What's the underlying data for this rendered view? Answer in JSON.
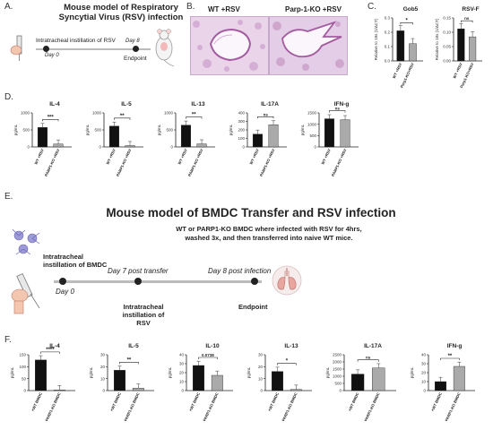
{
  "panel_a": {
    "letter": "A.",
    "title": "Mouse model of Respiratory Syncytial Virus (RSV) infection",
    "step": "Intratracheal instillation of RSV",
    "day0": "Day 0",
    "day8": "Day 8",
    "endpoint": "Endpoint"
  },
  "panel_b": {
    "letter": "B.",
    "left_label": "WT +RSV",
    "right_label": "Parp-1-KO +RSV"
  },
  "panel_c": {
    "letter": "C."
  },
  "panel_d": {
    "letter": "D."
  },
  "panel_e": {
    "letter": "E.",
    "title": "Mouse model of BMDC Transfer and RSV infection",
    "desc_1": "WT or PARP1-KO BMDC where infected with RSV for 4hrs,",
    "desc_2": "washed 3x, and then transferred into naive WT mice.",
    "step1_1": "Intratracheal",
    "step1_2": "instillation of BMDC",
    "day0": "Day 0",
    "day7": "Day 7 post transfer",
    "day8": "Day 8 post infection",
    "step2_1": "Intratracheal",
    "step2_2": "instillation of RSV",
    "endpoint": "Endpoint"
  },
  "panel_f": {
    "letter": "F."
  },
  "colors": {
    "wt": "#111111",
    "ko": "#aaaaaa",
    "histo": "#c48cc0"
  },
  "chart_data": [
    {
      "id": "c1",
      "type": "bar",
      "title": "Gob5",
      "ylabel": "Relative to 18s (1/ΔCT)",
      "ylim": [
        0,
        0.3
      ],
      "yticks": [
        "0.0",
        "0.1",
        "0.2",
        "0.3"
      ],
      "categories": [
        "WT +RSV",
        "Parp1-KO+RSV"
      ],
      "values": [
        0.21,
        0.12
      ],
      "sig": "*"
    },
    {
      "id": "c2",
      "type": "bar",
      "title": "RSV-F",
      "ylabel": "Relative to 18s (1/ΔCT)",
      "ylim": [
        0,
        0.15
      ],
      "yticks": [
        "0.00",
        "0.05",
        "0.10",
        "0.15"
      ],
      "categories": [
        "WT +RSV",
        "Parp1-KO+RSV"
      ],
      "values": [
        0.112,
        0.084
      ],
      "sig": "ns"
    },
    {
      "id": "d1",
      "type": "bar",
      "title": "IL-4",
      "ylabel": "pg/mL",
      "ylim": [
        0,
        1000
      ],
      "yticks": [
        "0",
        "500",
        "1000"
      ],
      "categories": [
        "WT +RSV",
        "PARP1-KO +RSV"
      ],
      "values": [
        570,
        85
      ],
      "sig": "***"
    },
    {
      "id": "d2",
      "type": "bar",
      "title": "IL-5",
      "ylabel": "pg/mL",
      "ylim": [
        0,
        1000
      ],
      "yticks": [
        "0",
        "500",
        "1000"
      ],
      "categories": [
        "WT +RSV",
        "PARP1-KO +RSV"
      ],
      "values": [
        610,
        40
      ],
      "sig": "**"
    },
    {
      "id": "d3",
      "type": "bar",
      "title": "IL-13",
      "ylabel": "pg/mL",
      "ylim": [
        0,
        1000
      ],
      "yticks": [
        "0",
        "500",
        "1000"
      ],
      "categories": [
        "WT +RSV",
        "PARP1-KO +RSV"
      ],
      "values": [
        640,
        90
      ],
      "sig": "**"
    },
    {
      "id": "d4",
      "type": "bar",
      "title": "IL-17A",
      "ylabel": "pg/mL",
      "ylim": [
        0,
        400
      ],
      "yticks": [
        "0",
        "100",
        "200",
        "300",
        "400"
      ],
      "categories": [
        "WT +RSV",
        "PARP1-KO +RSV"
      ],
      "values": [
        150,
        260
      ],
      "sig": "ns"
    },
    {
      "id": "d5",
      "type": "bar",
      "title": "IFN-g",
      "ylabel": "pg/mL",
      "ylim": [
        0,
        1500
      ],
      "yticks": [
        "0",
        "500",
        "1000",
        "1500"
      ],
      "categories": [
        "WT +RSV",
        "PARP1-KO +RSV"
      ],
      "values": [
        1240,
        1200
      ],
      "sig": "ns"
    },
    {
      "id": "f1",
      "type": "bar",
      "title": "IL-4",
      "ylabel": "pg/mL",
      "ylim": [
        0,
        150
      ],
      "yticks": [
        "0",
        "50",
        "100",
        "150"
      ],
      "categories": [
        "+WT BMDC",
        "+PARP1-KO BMDC"
      ],
      "values": [
        128,
        3
      ],
      "sig": "****"
    },
    {
      "id": "f2",
      "type": "bar",
      "title": "IL-5",
      "ylabel": "pg/mL",
      "ylim": [
        0,
        30
      ],
      "yticks": [
        "0",
        "10",
        "20",
        "30"
      ],
      "categories": [
        "+WT BMDC",
        "+PARP1-KO BMDC"
      ],
      "values": [
        17,
        2
      ],
      "sig": "**"
    },
    {
      "id": "f3",
      "type": "bar",
      "title": "IL-10",
      "ylabel": "pg/mL",
      "ylim": [
        0,
        40
      ],
      "yticks": [
        "0",
        "10",
        "20",
        "30",
        "40"
      ],
      "categories": [
        "+WT BMDC",
        "+PARP1-KO BMDC"
      ],
      "values": [
        28,
        17
      ],
      "sig": "0.0738"
    },
    {
      "id": "f4",
      "type": "bar",
      "title": "IL-13",
      "ylabel": "pg/mL",
      "ylim": [
        0,
        30
      ],
      "yticks": [
        "0",
        "10",
        "20",
        "30"
      ],
      "categories": [
        "+WT BMDC",
        "+PARP1-KO BMDC"
      ],
      "values": [
        16,
        1
      ],
      "sig": "*"
    },
    {
      "id": "f5",
      "type": "bar",
      "title": "IL-17A",
      "ylabel": "pg/mL",
      "ylim": [
        0,
        2500
      ],
      "yticks": [
        "0",
        "500",
        "1000",
        "1500",
        "2000",
        "2500"
      ],
      "categories": [
        "+WT BMDC",
        "+PARP1-KO BMDC"
      ],
      "values": [
        1150,
        1580
      ],
      "sig": "ns"
    },
    {
      "id": "f6",
      "type": "bar",
      "title": "IFN-g",
      "ylabel": "pg/mL",
      "ylim": [
        0,
        40
      ],
      "yticks": [
        "0",
        "10",
        "20",
        "30",
        "40"
      ],
      "categories": [
        "+WT BMDC",
        "+PARP1-KO BMDC"
      ],
      "values": [
        10,
        27
      ],
      "sig": "**"
    }
  ]
}
